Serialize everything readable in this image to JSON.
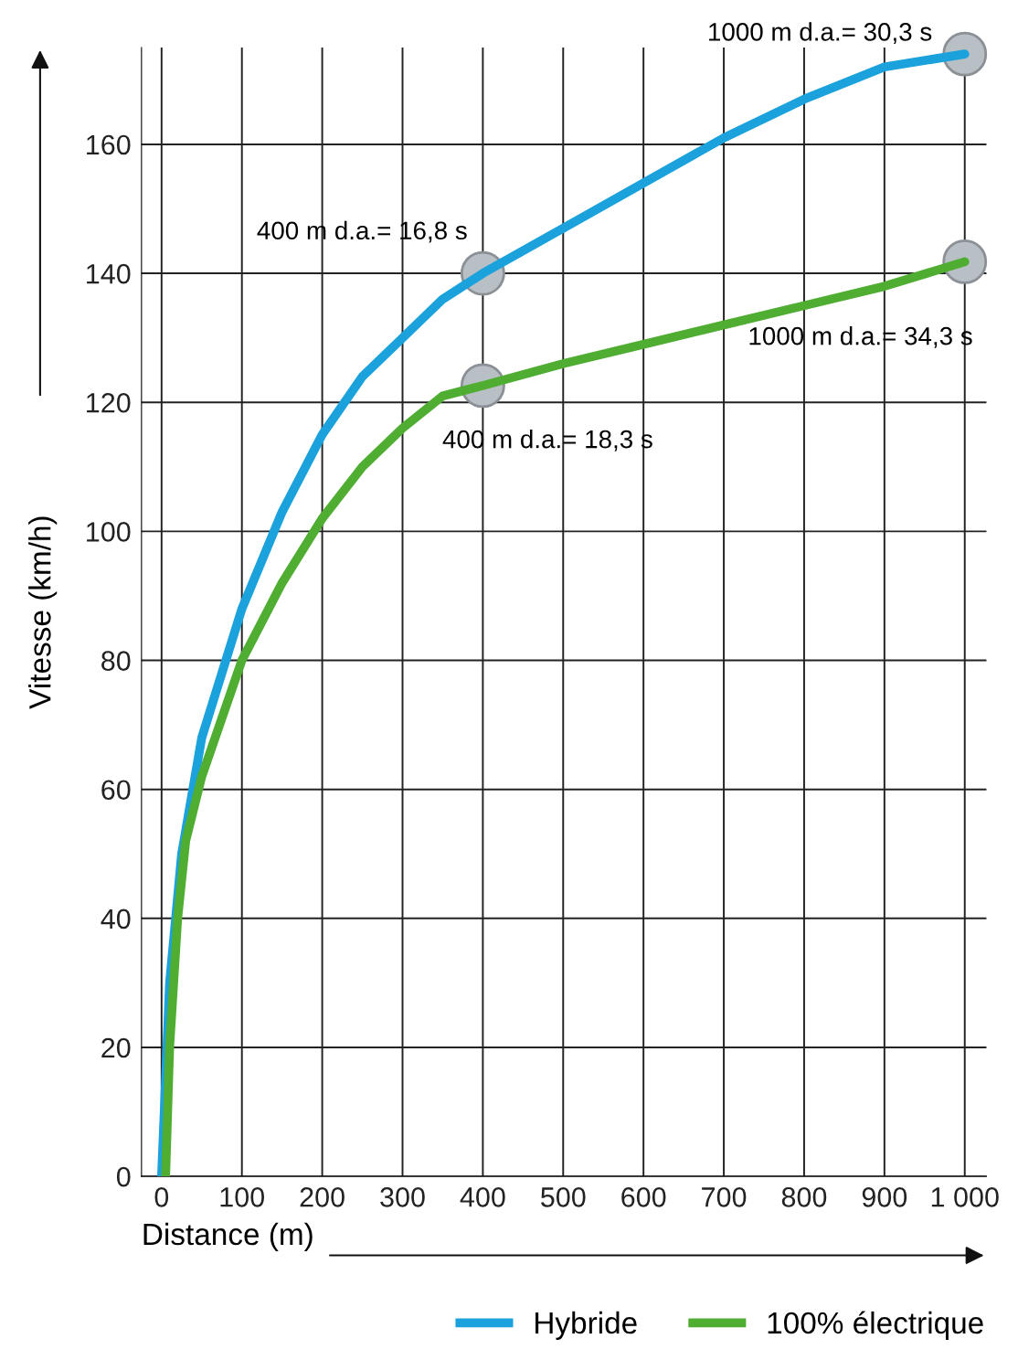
{
  "chart_data": {
    "type": "line",
    "xlabel": "Distance (m)",
    "ylabel": "Vitesse (km/h)",
    "xlim": [
      -25,
      1027
    ],
    "ylim": [
      0,
      175
    ],
    "xticks": [
      0,
      100,
      200,
      300,
      400,
      500,
      600,
      700,
      800,
      900,
      {
        "value": 1000,
        "label": "1 000"
      }
    ],
    "yticks": [
      0,
      20,
      40,
      60,
      80,
      100,
      120,
      140,
      160
    ],
    "grid": true,
    "legend": "bottom right",
    "line_style": "solid",
    "series": [
      {
        "name": "Hybride",
        "color": "#1ba1dc",
        "x": [
          0,
          10,
          25,
          50,
          100,
          150,
          200,
          250,
          300,
          350,
          400,
          500,
          600,
          700,
          800,
          900,
          1000
        ],
        "values": [
          0,
          30,
          50,
          68,
          88,
          103,
          115,
          124,
          130,
          136,
          140,
          147,
          154,
          161,
          167,
          172,
          174
        ]
      },
      {
        "name": "100% électrique",
        "color": "#4fae32",
        "x": [
          5,
          10,
          20,
          30,
          50,
          100,
          150,
          200,
          250,
          300,
          350,
          400,
          500,
          600,
          700,
          800,
          900,
          1000
        ],
        "values": [
          0,
          20,
          40,
          52,
          62,
          80,
          92,
          102,
          110,
          116,
          121,
          122.6,
          126,
          129,
          132,
          135,
          138,
          141.8
        ]
      },
      {
        "type": "scatter",
        "marker": "circle",
        "color": "#b8bfc5",
        "x": [
          400,
          1000,
          400,
          1000
        ],
        "values": [
          140,
          174,
          122.6,
          141.8
        ]
      }
    ],
    "annotations": [
      "400 m d.a.= 16,8 s",
      "1000 m d.a.= 30,3 s",
      "400 m d.a.= 18,3 s",
      "1000 m d.a.= 34,3 s"
    ]
  }
}
